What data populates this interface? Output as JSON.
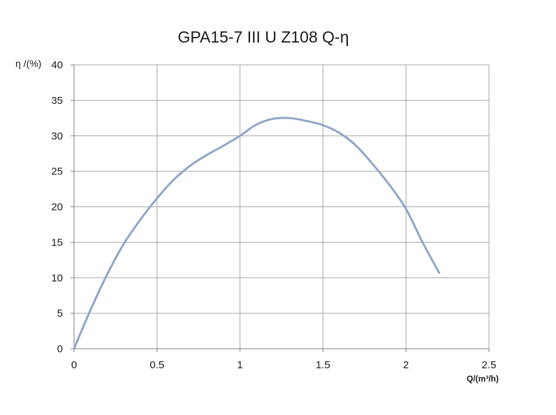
{
  "chart_data": {
    "type": "line",
    "title": "GPA15-7 III U Z108 Q-η",
    "ylabel": "η /(%)",
    "xlabel": "Q/(m³/h)",
    "xlim": [
      0,
      2.5
    ],
    "ylim": [
      0,
      40
    ],
    "x_ticks": [
      0,
      0.5,
      1,
      1.5,
      2,
      2.5
    ],
    "x_tick_labels": [
      "0",
      "0.5",
      "1",
      "1.5",
      "2",
      "2.5"
    ],
    "y_ticks": [
      0,
      5,
      10,
      15,
      20,
      25,
      30,
      35,
      40
    ],
    "y_tick_labels": [
      "0",
      "5",
      "10",
      "15",
      "20",
      "25",
      "30",
      "35",
      "40"
    ],
    "grid": true,
    "line_color": "#8fa5c8",
    "series": [
      {
        "x": [
          0,
          0.1,
          0.2,
          0.3,
          0.4,
          0.5,
          0.6,
          0.7,
          0.8,
          0.9,
          1.0,
          1.1,
          1.2,
          1.3,
          1.4,
          1.5,
          1.6,
          1.7,
          1.8,
          1.9,
          2.0,
          2.1,
          2.2
        ],
        "values": [
          0,
          5.5,
          10.5,
          14.8,
          18.2,
          21.2,
          23.8,
          25.8,
          27.3,
          28.6,
          30.0,
          31.6,
          32.4,
          32.5,
          32.1,
          31.5,
          30.4,
          28.6,
          26.0,
          23.1,
          19.7,
          15.0,
          10.7
        ]
      }
    ]
  }
}
